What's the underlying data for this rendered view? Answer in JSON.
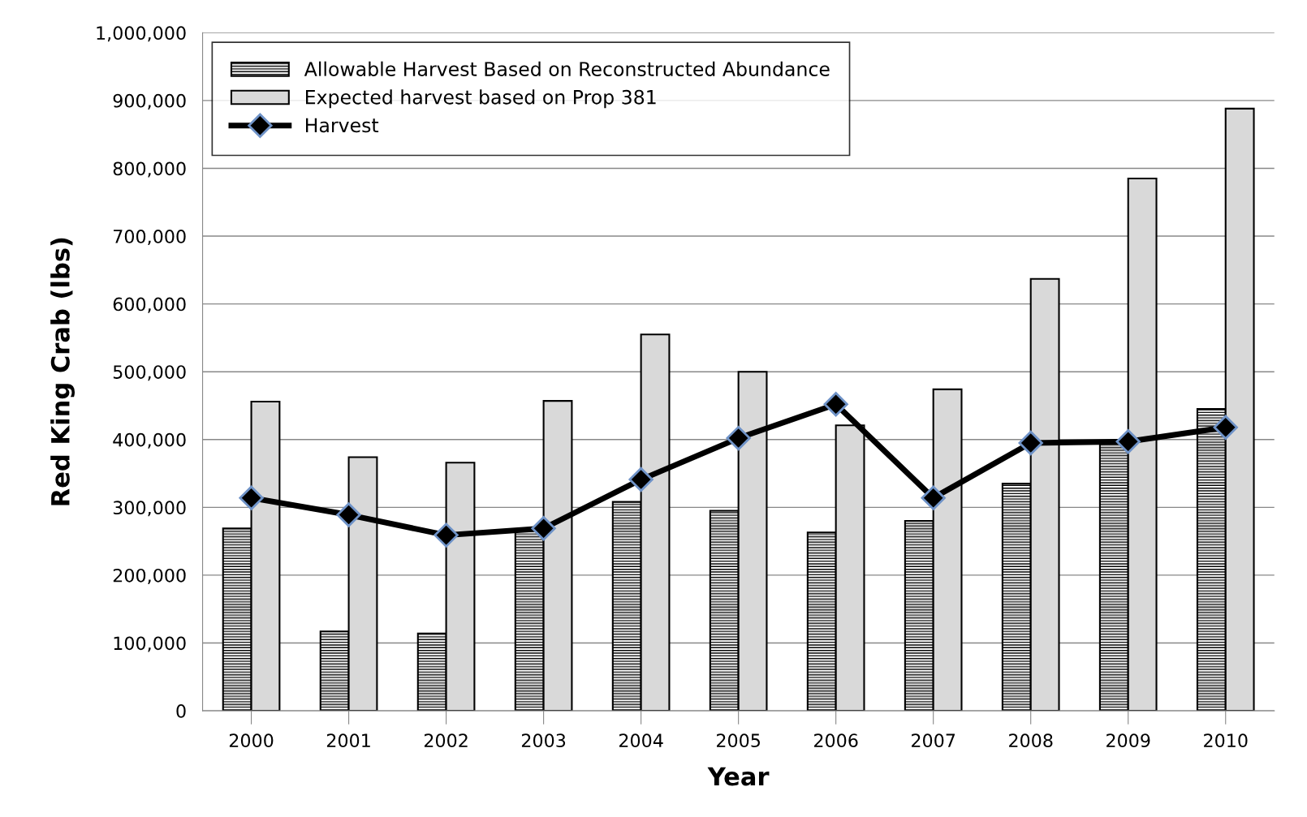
{
  "chart_data": {
    "type": "bar",
    "xlabel": "Year",
    "ylabel": "Red King Crab (lbs)",
    "categories": [
      "2000",
      "2001",
      "2002",
      "2003",
      "2004",
      "2005",
      "2006",
      "2007",
      "2008",
      "2009",
      "2010"
    ],
    "series": [
      {
        "name": "Allowable Harvest Based on Reconstructed Abundance",
        "color": "#000000",
        "values": [
          269000,
          117000,
          114000,
          268000,
          308000,
          295000,
          263000,
          280000,
          335000,
          395000,
          445000
        ]
      },
      {
        "name": "Expected harvest based on Prop 381",
        "color": "#d9d9d9",
        "values": [
          456000,
          374000,
          366000,
          457000,
          555000,
          500000,
          421000,
          474000,
          637000,
          785000,
          888000
        ]
      },
      {
        "name": "Harvest",
        "type": "line",
        "color": "#000000",
        "marker": "diamond",
        "values": [
          314000,
          289000,
          259000,
          269000,
          341000,
          402000,
          452000,
          314000,
          395000,
          397000,
          418000
        ]
      }
    ],
    "ylim": [
      0,
      1000000
    ],
    "yticks": [
      {
        "value": 0,
        "label": "0"
      },
      {
        "value": 100000,
        "label": "100,000"
      },
      {
        "value": 200000,
        "label": "200,000"
      },
      {
        "value": 300000,
        "label": "300,000"
      },
      {
        "value": 400000,
        "label": "400,000"
      },
      {
        "value": 500000,
        "label": "500,000"
      },
      {
        "value": 600000,
        "label": "600,000"
      },
      {
        "value": 700000,
        "label": "700,000"
      },
      {
        "value": 800000,
        "label": "800,000"
      },
      {
        "value": 900000,
        "label": "900,000"
      },
      {
        "value": 1000000,
        "label": "1,000,000"
      }
    ],
    "grid": "y",
    "legend": "top left"
  }
}
